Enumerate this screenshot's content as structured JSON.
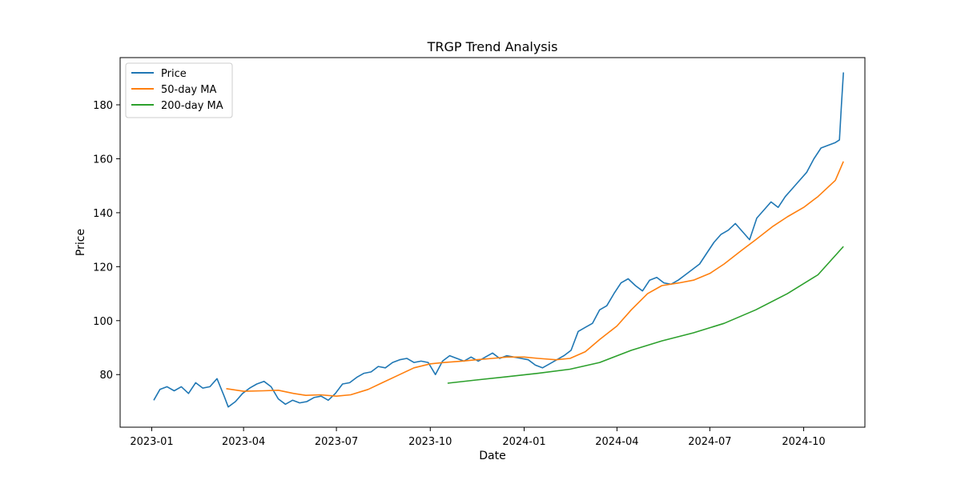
{
  "chart_data": {
    "type": "line",
    "title": "TRGP Trend Analysis",
    "xlabel": "Date",
    "ylabel": "Price",
    "x_range": [
      "2022-12-01",
      "2024-11-30"
    ],
    "ylim": [
      60.5,
      197.5
    ],
    "x_ticks": [
      "2023-01",
      "2023-04",
      "2023-07",
      "2023-10",
      "2024-01",
      "2024-04",
      "2024-07",
      "2024-10"
    ],
    "y_ticks": [
      80,
      100,
      120,
      140,
      160,
      180
    ],
    "grid": false,
    "legend_position": "top-left",
    "series": [
      {
        "name": "Price",
        "color": "#1f77b4",
        "points": [
          [
            "2023-01-03",
            70.5
          ],
          [
            "2023-01-09",
            74.5
          ],
          [
            "2023-01-16",
            75.5
          ],
          [
            "2023-01-23",
            74
          ],
          [
            "2023-01-30",
            75.5
          ],
          [
            "2023-02-06",
            73
          ],
          [
            "2023-02-13",
            77
          ],
          [
            "2023-02-20",
            75
          ],
          [
            "2023-02-27",
            75.5
          ],
          [
            "2023-03-06",
            78.5
          ],
          [
            "2023-03-13",
            72
          ],
          [
            "2023-03-17",
            68
          ],
          [
            "2023-03-24",
            70
          ],
          [
            "2023-03-31",
            73
          ],
          [
            "2023-04-07",
            75
          ],
          [
            "2023-04-14",
            76.5
          ],
          [
            "2023-04-21",
            77.5
          ],
          [
            "2023-04-28",
            75.5
          ],
          [
            "2023-05-05",
            71
          ],
          [
            "2023-05-12",
            69
          ],
          [
            "2023-05-19",
            70.5
          ],
          [
            "2023-05-26",
            69.5
          ],
          [
            "2023-06-02",
            70
          ],
          [
            "2023-06-09",
            71.5
          ],
          [
            "2023-06-16",
            72
          ],
          [
            "2023-06-23",
            70.5
          ],
          [
            "2023-06-30",
            73
          ],
          [
            "2023-07-07",
            76.5
          ],
          [
            "2023-07-14",
            77
          ],
          [
            "2023-07-21",
            79
          ],
          [
            "2023-07-28",
            80.5
          ],
          [
            "2023-08-04",
            81
          ],
          [
            "2023-08-11",
            83
          ],
          [
            "2023-08-18",
            82.5
          ],
          [
            "2023-08-25",
            84.5
          ],
          [
            "2023-09-01",
            85.5
          ],
          [
            "2023-09-08",
            86
          ],
          [
            "2023-09-15",
            84.5
          ],
          [
            "2023-09-22",
            85
          ],
          [
            "2023-09-29",
            84.5
          ],
          [
            "2023-10-06",
            80
          ],
          [
            "2023-10-13",
            85
          ],
          [
            "2023-10-20",
            87
          ],
          [
            "2023-10-27",
            86
          ],
          [
            "2023-11-03",
            85
          ],
          [
            "2023-11-10",
            86.5
          ],
          [
            "2023-11-17",
            85
          ],
          [
            "2023-11-24",
            86.5
          ],
          [
            "2023-12-01",
            88
          ],
          [
            "2023-12-08",
            86
          ],
          [
            "2023-12-15",
            87
          ],
          [
            "2023-12-22",
            86.5
          ],
          [
            "2023-12-29",
            86
          ],
          [
            "2024-01-05",
            85.5
          ],
          [
            "2024-01-12",
            83.5
          ],
          [
            "2024-01-19",
            82.5
          ],
          [
            "2024-01-26",
            84
          ],
          [
            "2024-02-02",
            85.5
          ],
          [
            "2024-02-09",
            87
          ],
          [
            "2024-02-16",
            89
          ],
          [
            "2024-02-23",
            96
          ],
          [
            "2024-03-01",
            97.5
          ],
          [
            "2024-03-08",
            99
          ],
          [
            "2024-03-15",
            104
          ],
          [
            "2024-03-22",
            105.5
          ],
          [
            "2024-03-29",
            110
          ],
          [
            "2024-04-05",
            114
          ],
          [
            "2024-04-12",
            115.5
          ],
          [
            "2024-04-19",
            113
          ],
          [
            "2024-04-26",
            111
          ],
          [
            "2024-05-03",
            115
          ],
          [
            "2024-05-10",
            116
          ],
          [
            "2024-05-17",
            114
          ],
          [
            "2024-05-24",
            113.5
          ],
          [
            "2024-05-31",
            115
          ],
          [
            "2024-06-07",
            117
          ],
          [
            "2024-06-14",
            119
          ],
          [
            "2024-06-21",
            121
          ],
          [
            "2024-06-28",
            125
          ],
          [
            "2024-07-05",
            129
          ],
          [
            "2024-07-12",
            132
          ],
          [
            "2024-07-19",
            133.5
          ],
          [
            "2024-07-26",
            136
          ],
          [
            "2024-08-02",
            133
          ],
          [
            "2024-08-09",
            130
          ],
          [
            "2024-08-16",
            138
          ],
          [
            "2024-08-23",
            141
          ],
          [
            "2024-08-30",
            144
          ],
          [
            "2024-09-06",
            142
          ],
          [
            "2024-09-13",
            146
          ],
          [
            "2024-09-20",
            149
          ],
          [
            "2024-09-27",
            152
          ],
          [
            "2024-10-04",
            155
          ],
          [
            "2024-10-11",
            160
          ],
          [
            "2024-10-18",
            164
          ],
          [
            "2024-10-25",
            165
          ],
          [
            "2024-11-01",
            166
          ],
          [
            "2024-11-05",
            167
          ],
          [
            "2024-11-07",
            180
          ],
          [
            "2024-11-09",
            192
          ]
        ]
      },
      {
        "name": "50-day MA",
        "color": "#ff7f0e",
        "points": [
          [
            "2023-03-15",
            74.8
          ],
          [
            "2023-04-01",
            73.8
          ],
          [
            "2023-04-20",
            74
          ],
          [
            "2023-05-05",
            74.2
          ],
          [
            "2023-05-20",
            73
          ],
          [
            "2023-06-01",
            72.3
          ],
          [
            "2023-06-15",
            72.5
          ],
          [
            "2023-07-01",
            72
          ],
          [
            "2023-07-15",
            72.5
          ],
          [
            "2023-08-01",
            74.5
          ],
          [
            "2023-08-15",
            77
          ],
          [
            "2023-09-01",
            80
          ],
          [
            "2023-09-15",
            82.5
          ],
          [
            "2023-10-01",
            84
          ],
          [
            "2023-10-15",
            84.5
          ],
          [
            "2023-11-01",
            85
          ],
          [
            "2023-11-15",
            85.5
          ],
          [
            "2023-12-01",
            86
          ],
          [
            "2023-12-15",
            86.5
          ],
          [
            "2024-01-01",
            86.5
          ],
          [
            "2024-01-15",
            86
          ],
          [
            "2024-02-01",
            85.5
          ],
          [
            "2024-02-15",
            86
          ],
          [
            "2024-03-01",
            88.5
          ],
          [
            "2024-03-15",
            93
          ],
          [
            "2024-04-01",
            98
          ],
          [
            "2024-04-15",
            104
          ],
          [
            "2024-05-01",
            110
          ],
          [
            "2024-05-15",
            113
          ],
          [
            "2024-06-01",
            114
          ],
          [
            "2024-06-15",
            115
          ],
          [
            "2024-07-01",
            117.5
          ],
          [
            "2024-07-15",
            121
          ],
          [
            "2024-08-01",
            126
          ],
          [
            "2024-08-15",
            130
          ],
          [
            "2024-09-01",
            135
          ],
          [
            "2024-09-15",
            138.5
          ],
          [
            "2024-10-01",
            142
          ],
          [
            "2024-10-15",
            146
          ],
          [
            "2024-11-01",
            152
          ],
          [
            "2024-11-09",
            159
          ]
        ]
      },
      {
        "name": "200-day MA",
        "color": "#2ca02c",
        "points": [
          [
            "2023-10-18",
            76.8
          ],
          [
            "2023-11-15",
            78
          ],
          [
            "2023-12-15",
            79.2
          ],
          [
            "2024-01-15",
            80.5
          ],
          [
            "2024-02-15",
            82
          ],
          [
            "2024-03-15",
            84.5
          ],
          [
            "2024-04-15",
            89
          ],
          [
            "2024-05-15",
            92.5
          ],
          [
            "2024-06-15",
            95.5
          ],
          [
            "2024-07-15",
            99
          ],
          [
            "2024-08-15",
            104
          ],
          [
            "2024-09-15",
            110
          ],
          [
            "2024-10-15",
            117
          ],
          [
            "2024-11-09",
            127.5
          ]
        ]
      }
    ]
  }
}
